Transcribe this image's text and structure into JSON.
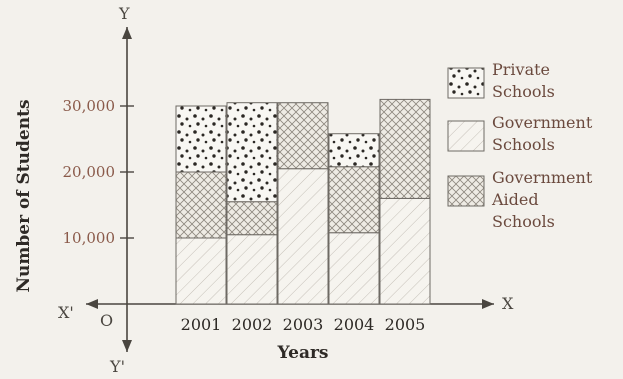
{
  "chart_data": {
    "type": "bar",
    "stacked": true,
    "categories": [
      "2001",
      "2002",
      "2003",
      "2004",
      "2005"
    ],
    "series": [
      {
        "name": "Government Schools",
        "values": [
          10000,
          10500,
          20500,
          10800,
          16000
        ],
        "pattern": "diagonal-sparse",
        "color": "#f5f3ee"
      },
      {
        "name": "Government Aided Schools",
        "values": [
          10000,
          5000,
          10000,
          10000,
          15000
        ],
        "pattern": "crosshatch",
        "color": "#ece9e2"
      },
      {
        "name": "Private Schools",
        "values": [
          10000,
          15000,
          0,
          5000,
          0
        ],
        "pattern": "dots",
        "color": "#f7f6f2"
      }
    ],
    "legend_order": [
      "Private Schools",
      "Government Schools",
      "Government Aided Schools"
    ],
    "legend_lines": [
      [
        "Private",
        "Schools"
      ],
      [
        "Government",
        "Schools"
      ],
      [
        "Government",
        "Aided",
        "Schools"
      ]
    ],
    "yticks": [
      10000,
      20000,
      30000
    ],
    "ytick_labels": [
      "10,000",
      "20,000",
      "30,000"
    ],
    "ylim": [
      0,
      40000
    ],
    "xlabel": "Years",
    "ylabel": "Number of Students",
    "axis_letters": {
      "x": "X",
      "x_neg": "X'",
      "y": "Y",
      "y_neg": "Y'",
      "origin": "O"
    },
    "legend_position": "right",
    "grid": false
  }
}
